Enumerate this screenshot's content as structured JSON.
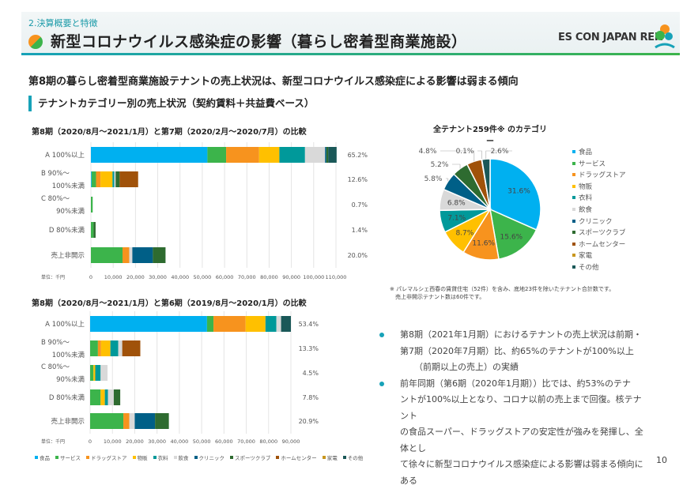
{
  "header": {
    "section": "2.決算概要と特徴",
    "title": "新型コロナウイルス感染症の影響（暮らし密着型商業施設）",
    "logo_text": "ES CON JAPAN REIT"
  },
  "headline": "第8期の暮らし密着型商業施設テナントの売上状況は、新型コロナウイルス感染症による影響は弱まる傾向",
  "subheading": "テナントカテゴリー別の売上状況（契約賃料＋共益費ベース）",
  "colors": {
    "食品": "#00b0f0",
    "サービス": "#3cb44b",
    "ドラッグストア": "#f7931e",
    "物販": "#ffc000",
    "衣料": "#00999a",
    "飲食": "#d9d9d9",
    "クリニック": "#005f87",
    "スポーツクラブ": "#2e6b30",
    "ホームセンター": "#a0520a",
    "家電": "#c8961e",
    "その他": "#1a5858"
  },
  "chart_data": [
    {
      "type": "bar",
      "orientation": "horizontal",
      "stacked": true,
      "title": "第8期（2020/8月～2021/1月）と第7期（2020/2月～2020/7月）の比較",
      "categories": [
        [
          "A  100%以上"
        ],
        [
          "B  90%～",
          "100%未満"
        ],
        [
          "C   80%～",
          "90%未満"
        ],
        [
          "D   80%未満"
        ],
        [
          "売上非開示"
        ]
      ],
      "percent_labels": [
        "65.2%",
        "12.6%",
        "0.7%",
        "1.4%",
        "20.0%"
      ],
      "unit_label": "単位：千円",
      "xlim": [
        0,
        110000
      ],
      "xticks": [
        "0",
        "10,000",
        "20,000",
        "30,000",
        "40,000",
        "50,000",
        "60,000",
        "70,000",
        "80,000",
        "90,000",
        "100,000",
        "110,000"
      ],
      "grid": true,
      "series": [
        {
          "name": "食品",
          "values": [
            52300,
            300,
            0,
            0,
            0
          ]
        },
        {
          "name": "サービス",
          "values": [
            8400,
            2000,
            800,
            1200,
            14200
          ]
        },
        {
          "name": "ドラッグストア",
          "values": [
            14800,
            2000,
            0,
            0,
            3000
          ]
        },
        {
          "name": "物販",
          "values": [
            9100,
            5400,
            0,
            0,
            0
          ]
        },
        {
          "name": "衣料",
          "values": [
            11500,
            800,
            0,
            0,
            0
          ]
        },
        {
          "name": "飲食",
          "values": [
            9000,
            600,
            0,
            0,
            1400
          ]
        },
        {
          "name": "クリニック",
          "values": [
            600,
            0,
            0,
            0,
            9200
          ]
        },
        {
          "name": "スポーツクラブ",
          "values": [
            800,
            1800,
            0,
            900,
            5700
          ]
        },
        {
          "name": "ホームセンター",
          "values": [
            0,
            8300,
            0,
            0,
            0
          ]
        },
        {
          "name": "家電",
          "values": [
            0,
            0,
            0,
            0,
            0
          ]
        },
        {
          "name": "その他",
          "values": [
            3800,
            0,
            0,
            0,
            0
          ]
        }
      ]
    },
    {
      "type": "bar",
      "orientation": "horizontal",
      "stacked": true,
      "title": "第8期（2020/8月～2021/1月）と第6期（2019/8月～2020/1月）の比較",
      "categories": [
        [
          "A  100%以上"
        ],
        [
          "B  90%～",
          "100%未満"
        ],
        [
          "C   80%～",
          "90%未満"
        ],
        [
          "D   80%未満"
        ],
        [
          "売上非開示"
        ]
      ],
      "percent_labels": [
        "53.4%",
        "13.3%",
        "4.5%",
        "7.8%",
        "20.9%"
      ],
      "unit_label": "単位：千円",
      "xlim": [
        0,
        90000
      ],
      "xticks": [
        "0",
        "10,000",
        "20,000",
        "30,000",
        "40,000",
        "50,000",
        "60,000",
        "70,000",
        "80,000",
        "90,000"
      ],
      "grid": true,
      "legend": [
        "食品",
        "サービス",
        "ドラッグストア",
        "物販",
        "衣料",
        "飲食",
        "クリニック",
        "スポーツクラブ",
        "ホームセンター",
        "家電",
        "その他"
      ],
      "legend_position": "bottom",
      "series": [
        {
          "name": "食品",
          "values": [
            52400,
            0,
            0,
            0,
            0
          ]
        },
        {
          "name": "サービス",
          "values": [
            2900,
            3500,
            1500,
            4700,
            14900
          ]
        },
        {
          "name": "ドラッグストア",
          "values": [
            14400,
            1400,
            0,
            0,
            2700
          ]
        },
        {
          "name": "物販",
          "values": [
            8900,
            4200,
            800,
            1900,
            0
          ]
        },
        {
          "name": "衣料",
          "values": [
            4900,
            3500,
            2400,
            1400,
            0
          ]
        },
        {
          "name": "飲食",
          "values": [
            2100,
            1800,
            3100,
            2600,
            2400
          ]
        },
        {
          "name": "クリニック",
          "values": [
            0,
            0,
            0,
            0,
            9100
          ]
        },
        {
          "name": "スポーツクラブ",
          "values": [
            0,
            0,
            0,
            2900,
            6200
          ]
        },
        {
          "name": "ホームセンター",
          "values": [
            0,
            8100,
            0,
            0,
            0
          ]
        },
        {
          "name": "家電",
          "values": [
            0,
            0,
            0,
            0,
            0
          ]
        },
        {
          "name": "その他",
          "values": [
            4400,
            0,
            0,
            0,
            0
          ]
        }
      ]
    },
    {
      "type": "pie",
      "title": "全テナント259件※ のカテゴリー",
      "legend_position": "right",
      "slices": [
        {
          "label": "食品",
          "value": 31.6,
          "text": "31.6%"
        },
        {
          "label": "サービス",
          "value": 15.6,
          "text": "15.6%"
        },
        {
          "label": "ドラッグストア",
          "value": 11.6,
          "text": "11.6%"
        },
        {
          "label": "物販",
          "value": 8.7,
          "text": "8.7%"
        },
        {
          "label": "衣料",
          "value": 7.1,
          "text": "7.1%"
        },
        {
          "label": "飲食",
          "value": 6.8,
          "text": "6.8%"
        },
        {
          "label": "クリニック",
          "value": 5.8,
          "text": "5.8%"
        },
        {
          "label": "スポーツクラブ",
          "value": 5.2,
          "text": "5.2%"
        },
        {
          "label": "ホームセンター",
          "value": 4.8,
          "text": "4.8%"
        },
        {
          "label": "家電",
          "value": 0.1,
          "text": "0.1%"
        },
        {
          "label": "その他",
          "value": 2.6,
          "text": "2.6%"
        }
      ]
    }
  ],
  "legend2_labels": [
    "食品",
    "サービス",
    "ドラッグストア",
    "物販",
    "衣料",
    "飲食",
    "クリニック",
    "スポーツクラブ",
    "ホームセンター",
    "家電",
    "その他"
  ],
  "pie_note": [
    "※ パレマルシェ西春の賃貸住宅（52件）を含み、底地23件を除いたテナント合計数です。",
    "　売上非開示テナント数は60件です。"
  ],
  "bullets": [
    [
      "第8期（2021年1月期）におけるテナントの売上状況は前期・",
      "第7期（2020年7月期）比、約65%のテナントが100%以上",
      "（前期以上の売上）の実績"
    ],
    [
      "前年同期（第6期（2020年1月期））比では、約53%のテナ",
      "ントが100%以上となり、コロナ以前の売上まで回復。核テナント",
      "の食品スーパー、ドラッグストアの安定性が強みを発揮し、全体とし",
      "て徐々に新型コロナウイルス感染症による影響は弱まる傾向にある"
    ]
  ],
  "page_number": "10"
}
